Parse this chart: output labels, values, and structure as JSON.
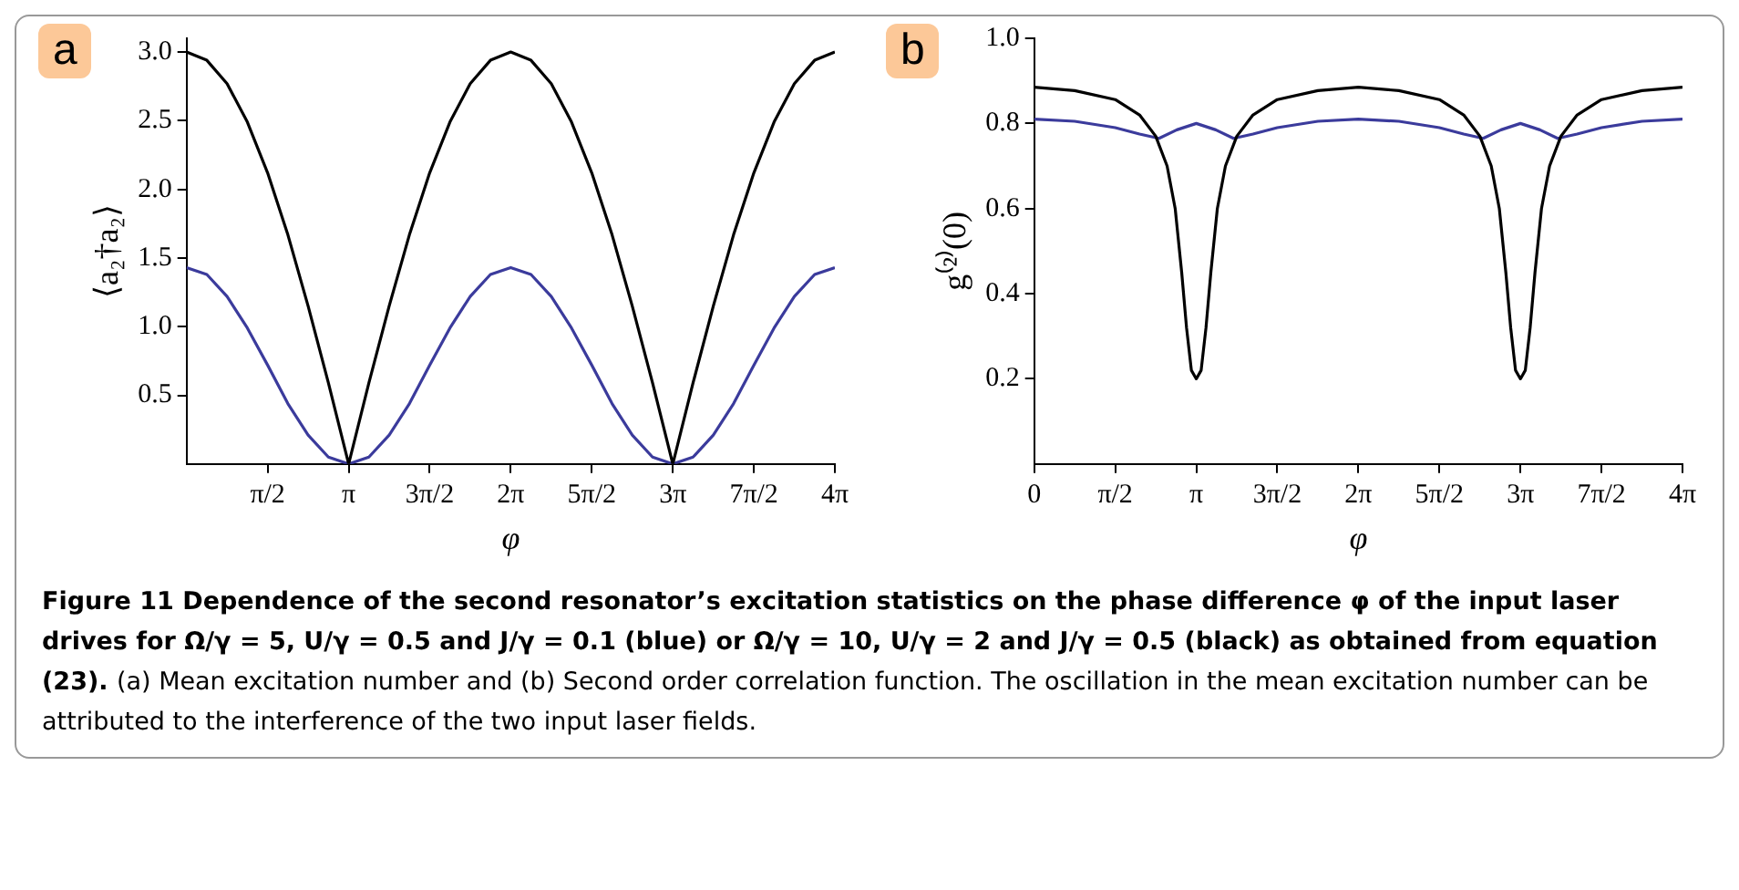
{
  "chart_data": [
    {
      "type": "line",
      "title": "a",
      "xlabel": "φ",
      "ylabel": "⟨a₂†a₂⟩",
      "xlim": [
        0,
        12.566
      ],
      "ylim": [
        0,
        3.1
      ],
      "xticks": [
        {
          "value": 1.571,
          "label": "π/2"
        },
        {
          "value": 3.142,
          "label": "π"
        },
        {
          "value": 4.712,
          "label": "3π/2"
        },
        {
          "value": 6.283,
          "label": "2π"
        },
        {
          "value": 7.854,
          "label": "5π/2"
        },
        {
          "value": 9.425,
          "label": "3π"
        },
        {
          "value": 10.996,
          "label": "7π/2"
        },
        {
          "value": 12.566,
          "label": "4π"
        }
      ],
      "yticks": [
        0.5,
        {
          "value": 1,
          "label": "1.0"
        },
        1.5,
        {
          "value": 2,
          "label": "2.0"
        },
        2.5,
        {
          "value": 3,
          "label": "3.0"
        }
      ],
      "grid": false,
      "legend": false,
      "marker": "none",
      "line_style": "solid",
      "x": [
        0,
        0.393,
        0.785,
        1.178,
        1.571,
        1.963,
        2.356,
        2.749,
        3.142,
        3.534,
        3.927,
        4.32,
        4.712,
        5.105,
        5.498,
        5.89,
        6.283,
        6.676,
        7.069,
        7.461,
        7.854,
        8.247,
        8.639,
        9.032,
        9.425,
        9.817,
        10.21,
        10.603,
        10.996,
        11.388,
        11.781,
        12.174,
        12.566
      ],
      "series": [
        {
          "color": "#000000",
          "values": [
            3.0,
            2.94,
            2.77,
            2.49,
            2.12,
            1.67,
            1.15,
            0.59,
            0,
            0.59,
            1.15,
            1.67,
            2.12,
            2.49,
            2.77,
            2.94,
            3.0,
            2.94,
            2.77,
            2.49,
            2.12,
            1.67,
            1.15,
            0.59,
            0,
            0.59,
            1.15,
            1.67,
            2.12,
            2.49,
            2.77,
            2.94,
            3.0
          ]
        },
        {
          "color": "#3b3b9c",
          "values": [
            1.43,
            1.38,
            1.22,
            0.99,
            0.72,
            0.44,
            0.21,
            0.05,
            0,
            0.05,
            0.21,
            0.44,
            0.72,
            0.99,
            1.22,
            1.38,
            1.43,
            1.38,
            1.22,
            0.99,
            0.72,
            0.44,
            0.21,
            0.05,
            0,
            0.05,
            0.21,
            0.44,
            0.72,
            0.99,
            1.22,
            1.38,
            1.43
          ]
        }
      ]
    },
    {
      "type": "line",
      "title": "b",
      "xlabel": "φ",
      "ylabel": "g⁽²⁾(0)",
      "xlim": [
        0,
        12.566
      ],
      "ylim": [
        0,
        1.0
      ],
      "xticks": [
        0,
        {
          "value": 1.571,
          "label": "π/2"
        },
        {
          "value": 3.142,
          "label": "π"
        },
        {
          "value": 4.712,
          "label": "3π/2"
        },
        {
          "value": 6.283,
          "label": "2π"
        },
        {
          "value": 7.854,
          "label": "5π/2"
        },
        {
          "value": 9.425,
          "label": "3π"
        },
        {
          "value": 10.996,
          "label": "7π/2"
        },
        {
          "value": 12.566,
          "label": "4π"
        }
      ],
      "yticks": [
        0.2,
        0.4,
        0.6,
        0.8,
        {
          "value": 1,
          "label": "1.0"
        }
      ],
      "grid": false,
      "legend": false,
      "marker": "none",
      "line_style": "solid",
      "series": [
        {
          "color": "#000000",
          "x": [
            0,
            0.785,
            1.571,
            2.042,
            2.356,
            2.576,
            2.733,
            2.859,
            2.953,
            3.047,
            3.142,
            3.236,
            3.33,
            3.424,
            3.55,
            3.707,
            3.927,
            4.241,
            4.712,
            5.498,
            6.283,
            7.069,
            7.854,
            8.325,
            8.639,
            8.859,
            9.016,
            9.142,
            9.236,
            9.33,
            9.425,
            9.519,
            9.613,
            9.707,
            9.833,
            9.99,
            10.21,
            10.524,
            10.996,
            11.781,
            12.566
          ],
          "values": [
            0.885,
            0.877,
            0.856,
            0.82,
            0.77,
            0.7,
            0.6,
            0.45,
            0.32,
            0.22,
            0.2,
            0.22,
            0.32,
            0.45,
            0.6,
            0.7,
            0.77,
            0.82,
            0.856,
            0.877,
            0.885,
            0.877,
            0.856,
            0.82,
            0.77,
            0.7,
            0.6,
            0.45,
            0.32,
            0.22,
            0.2,
            0.22,
            0.32,
            0.45,
            0.6,
            0.7,
            0.77,
            0.82,
            0.856,
            0.877,
            0.885
          ]
        },
        {
          "color": "#3b3b9c",
          "x": [
            0,
            0.785,
            1.571,
            2.042,
            2.419,
            2.765,
            3.142,
            3.519,
            3.864,
            4.241,
            4.712,
            5.498,
            6.283,
            7.069,
            7.854,
            8.325,
            8.702,
            9.048,
            9.425,
            9.802,
            10.147,
            10.524,
            10.996,
            11.781,
            12.566
          ],
          "values": [
            0.81,
            0.805,
            0.79,
            0.775,
            0.765,
            0.785,
            0.8,
            0.785,
            0.765,
            0.775,
            0.79,
            0.805,
            0.81,
            0.805,
            0.79,
            0.775,
            0.765,
            0.785,
            0.8,
            0.785,
            0.765,
            0.775,
            0.79,
            0.805,
            0.81
          ]
        }
      ]
    },
    {
      "type": "other",
      "annotations": [
        "Figure 11  Dependence of the second resonator’s excitation statistics on the phase difference φ of the input laser drives for Ω/γ = 5, U/γ = 0.5 and J/γ = 0.1 (blue) or Ω/γ = 10, U/γ = 2 and J/γ = 0.5 (black) as obtained from equation (23).",
        "(a) Mean excitation number and (b) Second order correlation function. The oscillation in the mean excitation number can be attributed to the interference of the two input laser fields."
      ]
    }
  ]
}
